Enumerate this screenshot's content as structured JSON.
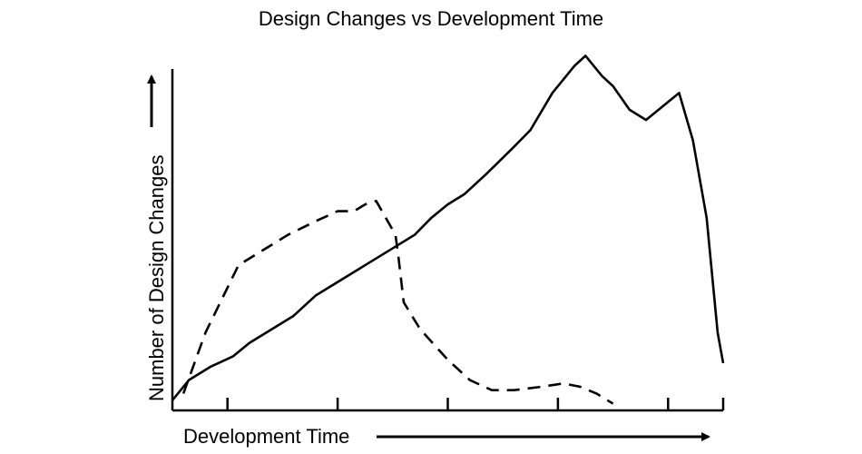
{
  "chart_data": {
    "type": "line",
    "title": "Design Changes vs Development Time",
    "xlabel": "Development Time",
    "ylabel": "Number of Design Changes",
    "xlim": [
      0,
      10
    ],
    "ylim": [
      0,
      10
    ],
    "grid": false,
    "legend": "none",
    "series": [
      {
        "style": "solid",
        "color": "#000000",
        "points": [
          [
            0.0,
            0.3
          ],
          [
            0.3,
            0.9
          ],
          [
            0.7,
            1.3
          ],
          [
            1.1,
            1.6
          ],
          [
            1.4,
            2.0
          ],
          [
            1.8,
            2.4
          ],
          [
            2.2,
            2.8
          ],
          [
            2.6,
            3.4
          ],
          [
            3.0,
            3.8
          ],
          [
            3.6,
            4.4
          ],
          [
            4.0,
            4.8
          ],
          [
            4.4,
            5.2
          ],
          [
            4.7,
            5.7
          ],
          [
            5.0,
            6.1
          ],
          [
            5.3,
            6.4
          ],
          [
            5.7,
            7.0
          ],
          [
            6.2,
            7.8
          ],
          [
            6.5,
            8.3
          ],
          [
            6.9,
            9.4
          ],
          [
            7.3,
            10.2
          ],
          [
            7.5,
            10.5
          ],
          [
            7.8,
            9.9
          ],
          [
            8.0,
            9.6
          ],
          [
            8.3,
            8.9
          ],
          [
            8.6,
            8.6
          ],
          [
            8.9,
            9.0
          ],
          [
            9.2,
            9.4
          ],
          [
            9.45,
            8.0
          ],
          [
            9.7,
            5.7
          ],
          [
            9.9,
            2.3
          ],
          [
            10.0,
            1.4
          ]
        ]
      },
      {
        "style": "dashed",
        "color": "#000000",
        "points": [
          [
            0.2,
            0.5
          ],
          [
            0.6,
            2.3
          ],
          [
            1.2,
            4.3
          ],
          [
            1.6,
            4.7
          ],
          [
            2.1,
            5.2
          ],
          [
            2.6,
            5.6
          ],
          [
            3.0,
            5.9
          ],
          [
            3.3,
            5.9
          ],
          [
            3.5,
            6.1
          ],
          [
            3.7,
            6.2
          ],
          [
            4.05,
            5.2
          ],
          [
            4.1,
            4.6
          ],
          [
            4.2,
            3.2
          ],
          [
            4.5,
            2.4
          ],
          [
            5.0,
            1.5
          ],
          [
            5.4,
            0.9
          ],
          [
            5.8,
            0.6
          ],
          [
            6.2,
            0.6
          ],
          [
            6.7,
            0.7
          ],
          [
            7.1,
            0.8
          ],
          [
            7.4,
            0.7
          ],
          [
            7.7,
            0.5
          ],
          [
            8.0,
            0.2
          ]
        ]
      }
    ]
  }
}
